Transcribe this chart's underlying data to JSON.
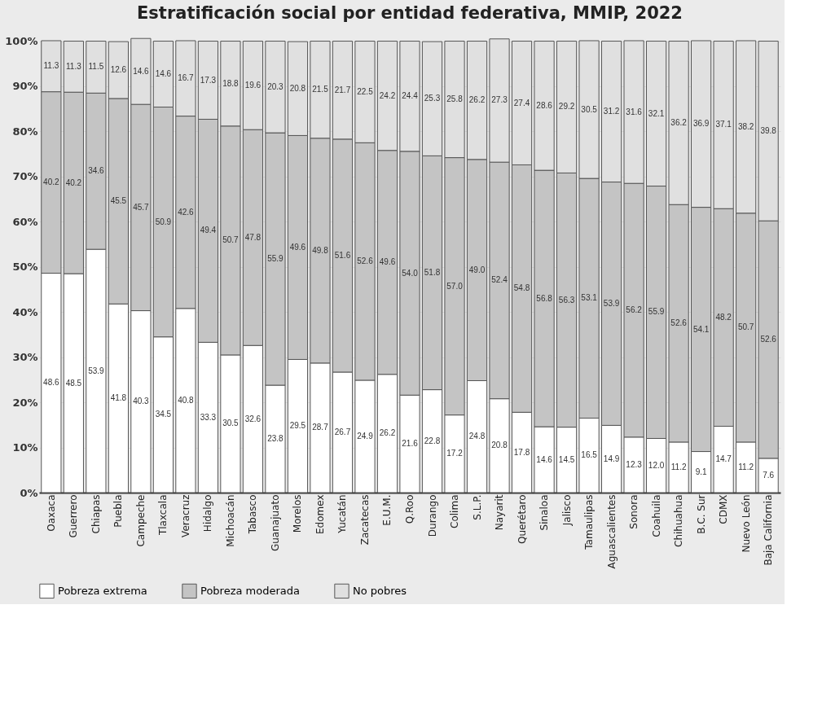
{
  "chart_data": {
    "type": "bar",
    "title": "Estratificación social por entidad federativa, MMIP, 2022",
    "categories": [
      "Oaxaca",
      "Guerrero",
      "Chiapas",
      "Puebla",
      "Campeche",
      "Tlaxcala",
      "Veracruz",
      "Hidalgo",
      "Michoacán",
      "Tabasco",
      "Guanajuato",
      "Morelos",
      "Edomex",
      "Yucatán",
      "Zacatecas",
      "E.U.M.",
      "Q.Roo",
      "Durango",
      "Colima",
      "S.L.P.",
      "Nayarit",
      "Querétaro",
      "Sinaloa",
      "Jalisco",
      "Tamaulipas",
      "Aguascalientes",
      "Sonora",
      "Coahuila",
      "Chihuahua",
      "B.C. Sur",
      "CDMX",
      "Nuevo León",
      "Baja California"
    ],
    "series": [
      {
        "name": "Pobreza extrema",
        "color": "#ffffff",
        "values": [
          48.6,
          48.5,
          53.9,
          41.8,
          40.3,
          34.5,
          40.8,
          33.3,
          30.5,
          32.6,
          23.8,
          29.5,
          28.7,
          26.7,
          24.9,
          26.2,
          21.6,
          22.8,
          17.2,
          24.8,
          20.8,
          17.8,
          14.6,
          14.5,
          16.5,
          14.9,
          12.3,
          12.0,
          11.2,
          9.1,
          14.7,
          11.2,
          7.6
        ],
        "value_labels": [
          "48.6",
          "48.5",
          "53.9",
          "41.8",
          "40.3",
          "34.5",
          "40.8",
          "33.3",
          "30.5",
          "32.6",
          "23.8",
          "29.5",
          "28.7",
          "26.7",
          "24.9",
          "26.2",
          "21.6",
          "22.8",
          "17.2",
          "24.8",
          "20.8",
          "17.8",
          "14.6",
          "14.5",
          "16.5",
          "14.9",
          "12.3",
          "12.0",
          "11.2",
          "9.1",
          "14.7",
          "11.2",
          "7.6"
        ]
      },
      {
        "name": "Pobreza moderada",
        "color": "#c4c4c4",
        "values": [
          40.2,
          40.2,
          34.6,
          45.5,
          45.7,
          50.9,
          42.6,
          49.4,
          50.7,
          47.8,
          55.9,
          49.6,
          49.8,
          51.6,
          52.6,
          49.6,
          54.0,
          51.8,
          57.0,
          49.0,
          52.4,
          54.8,
          56.8,
          56.3,
          53.1,
          53.9,
          56.2,
          55.9,
          52.6,
          54.1,
          48.2,
          50.7,
          52.6
        ],
        "value_labels": [
          "40.2",
          "40.2",
          "34.6",
          "45.5",
          "45.7",
          "50.9",
          "42.6",
          "49.4",
          "50.7",
          "47.8",
          "55.9",
          "49.6",
          "49.8",
          "51.6",
          "52.6",
          "49.6",
          "54.0",
          "51.8",
          "57.0",
          "49.0",
          "52.4",
          "54.8",
          "56.8",
          "56.3",
          "53.1",
          "53.9",
          "56.2",
          "55.9",
          "52.6",
          "54.1",
          "48.2",
          "50.7",
          "52.6"
        ]
      },
      {
        "name": "No pobres",
        "color": "#e0e0e0",
        "values": [
          11.3,
          11.3,
          11.5,
          12.6,
          14.6,
          14.6,
          16.7,
          17.3,
          18.8,
          19.6,
          20.3,
          20.8,
          21.5,
          21.7,
          22.5,
          24.2,
          24.4,
          25.3,
          25.8,
          26.2,
          27.3,
          27.4,
          28.6,
          29.2,
          30.5,
          31.2,
          31.6,
          32.1,
          36.2,
          36.9,
          37.1,
          38.2,
          39.8
        ],
        "value_labels": [
          "11.3",
          "11.3",
          "11.5",
          "12.6",
          "14.6",
          "14.6",
          "16.7",
          "17.3",
          "18.8",
          "19.6",
          "20.3",
          "20.8",
          "21.5",
          "21.7",
          "22.5",
          "24.2",
          "24.4",
          "25.3",
          "25.8",
          "26.2",
          "27.3",
          "27.4",
          "28.6",
          "29.2",
          "30.5",
          "31.2",
          "31.6",
          "32.1",
          "36.2",
          "36.9",
          "37.1",
          "38.2",
          "39.8"
        ]
      }
    ],
    "stacked": true,
    "ylim": [
      0,
      101
    ],
    "yticks": [
      {
        "value": 0,
        "label": "0%"
      },
      {
        "value": 10,
        "label": "10%"
      },
      {
        "value": 20,
        "label": "20%"
      },
      {
        "value": 30,
        "label": "30%"
      },
      {
        "value": 40,
        "label": "40%"
      },
      {
        "value": 50,
        "label": "50%"
      },
      {
        "value": 60,
        "label": "60%"
      },
      {
        "value": 70,
        "label": "70%"
      },
      {
        "value": 80,
        "label": "80%"
      },
      {
        "value": 90,
        "label": "90%"
      },
      {
        "value": 100,
        "label": "100%"
      }
    ],
    "grid": "y",
    "legend": "bottom"
  }
}
